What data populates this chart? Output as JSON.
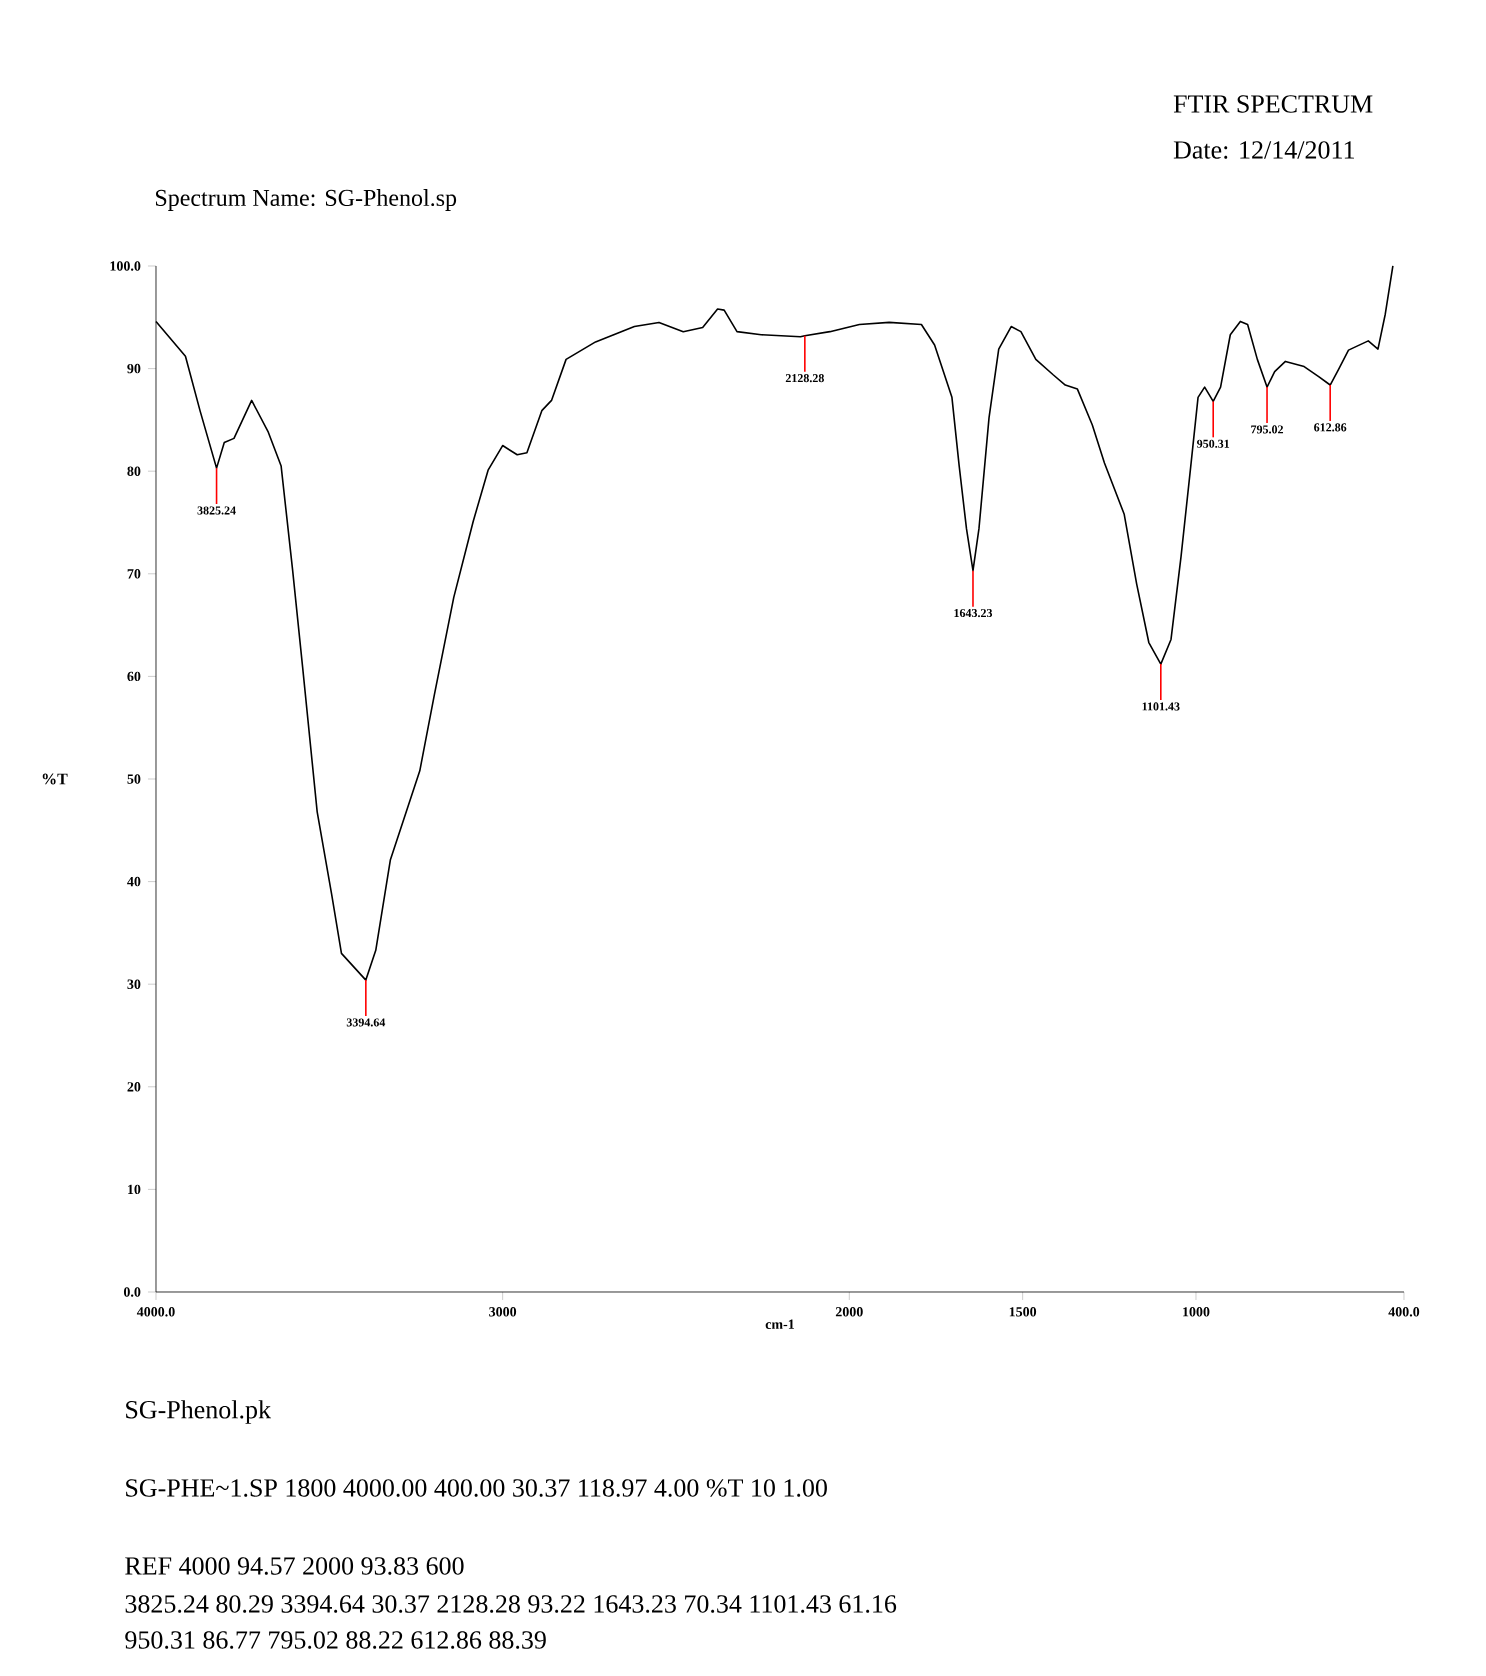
{
  "chart_data": {
    "type": "line",
    "title": "FTIR SPECTRUM",
    "subtitle": "Date: 12/14/2011",
    "xlabel": "cm-1",
    "ylabel": "%T",
    "color": "#000000",
    "x": [
      4000,
      3915,
      3873,
      3825.24,
      3803,
      3775,
      3724,
      3676,
      3639,
      3606,
      3577,
      3535,
      3493,
      3465,
      3394.64,
      3366,
      3324,
      3239,
      3197,
      3141,
      3085,
      3042,
      3000,
      2958,
      2930,
      2887,
      2859,
      2817,
      2732,
      2620,
      2549,
      2479,
      2423,
      2380,
      2361,
      2324,
      2254,
      2141,
      2128.28,
      2056,
      1971,
      1885,
      1792,
      1754,
      1704,
      1683,
      1662,
      1643.23,
      1626,
      1597,
      1569,
      1533,
      1505,
      1462,
      1412,
      1377,
      1342,
      1299,
      1264,
      1207,
      1171,
      1136,
      1101.43,
      1072,
      1043,
      1015,
      994,
      975,
      950.31,
      929,
      901,
      872,
      851,
      823,
      795.02,
      773,
      742,
      688,
      645,
      612.86,
      589,
      560,
      503,
      475,
      454,
      432
    ],
    "values": [
      94.6,
      91.2,
      85.9,
      80.3,
      82.8,
      83.2,
      86.9,
      83.8,
      80.5,
      70.4,
      60.9,
      46.8,
      38.7,
      33.0,
      30.4,
      33.3,
      42.1,
      50.8,
      58.2,
      67.7,
      75.1,
      80.1,
      82.5,
      81.6,
      81.8,
      85.9,
      86.9,
      90.9,
      92.6,
      94.1,
      94.5,
      93.6,
      94.0,
      95.8,
      95.7,
      93.6,
      93.3,
      93.1,
      93.2,
      93.6,
      94.3,
      94.5,
      94.3,
      92.3,
      87.2,
      80.5,
      74.4,
      70.3,
      74.4,
      85.2,
      91.9,
      94.1,
      93.6,
      90.9,
      89.4,
      88.4,
      88.0,
      84.5,
      80.8,
      75.8,
      69.0,
      63.3,
      61.2,
      63.6,
      71.7,
      80.5,
      87.2,
      88.2,
      86.8,
      88.2,
      93.3,
      94.6,
      94.3,
      90.9,
      88.2,
      89.7,
      90.7,
      90.2,
      89.2,
      88.4,
      89.9,
      91.8,
      92.7,
      91.9,
      95.3,
      100.0
    ],
    "xlim": [
      4000,
      400
    ],
    "ylim": [
      0,
      100
    ],
    "xticks": [
      {
        "value": 4000,
        "label": "4000.0"
      },
      3000,
      2000,
      1500,
      1000,
      {
        "value": 400,
        "label": "400.0"
      }
    ],
    "yticks": [
      {
        "value": 0,
        "label": "0.0"
      },
      10,
      20,
      30,
      40,
      50,
      60,
      70,
      80,
      90,
      {
        "value": 100,
        "label": "100.0"
      }
    ],
    "annotations": [
      "Spectrum Name: SG-Phenol.sp",
      "SG-Phenol.pk",
      "SG-PHE~1.SP 1800 4000.00 400.00 30.37 118.97 4.00 %T 10 1.00",
      "REF 4000 94.57 2000 93.83 600",
      "3825.24 80.29 3394.64 30.37 2128.28 93.22 1643.23 70.34 1101.43 61.16",
      "950.31 86.77 795.02 88.22 612.86 88.39",
      {
        "text": "3825.24",
        "x": 3825.24,
        "y": 80.3
      },
      {
        "text": "3394.64",
        "x": 3394.64,
        "y": 30.4
      },
      {
        "text": "2128.28",
        "x": 2128.28,
        "y": 93.2
      },
      {
        "text": "1643.23",
        "x": 1643.23,
        "y": 70.3
      },
      {
        "text": "1101.43",
        "x": 1101.43,
        "y": 61.2
      },
      {
        "text": "950.31",
        "x": 950.31,
        "y": 86.8
      },
      {
        "text": "795.02",
        "x": 795.02,
        "y": 88.2
      },
      {
        "text": "612.86",
        "x": 612.86,
        "y": 88.4
      }
    ]
  }
}
